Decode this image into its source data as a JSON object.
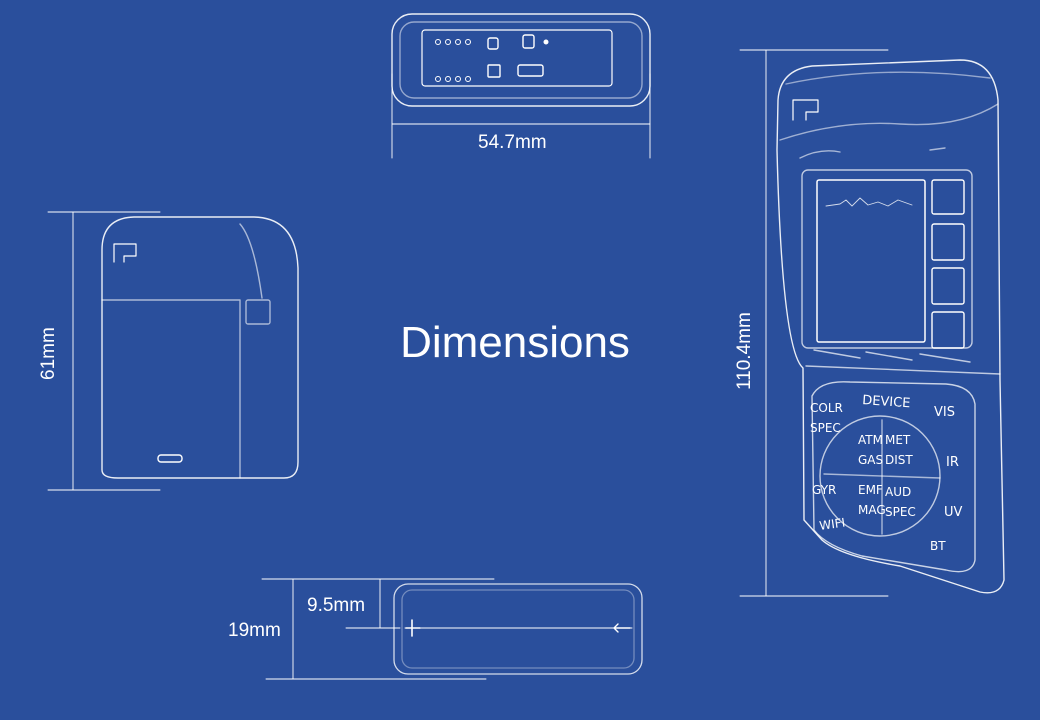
{
  "title": "Dimensions",
  "dimensions": {
    "top_width": "54.7mm",
    "side_height": "61mm",
    "front_height": "110.4mm",
    "bottom_depth": "19mm",
    "bottom_half_depth": "9.5mm"
  },
  "keypad": {
    "device": "DEVICE",
    "colr_spec": "COLR SPEC",
    "vis": "VIS",
    "atm_gas": "ATM GAS",
    "met_dist": "MET DIST",
    "ir": "IR",
    "gyr": "GYR",
    "emf_mag": "EMF MAG",
    "aud_spec": "AUD SPEC",
    "uv": "UV",
    "wifi": "WIFI",
    "bt": "BT"
  },
  "colors": {
    "background": "#2a4f9c",
    "lines": "#ffffff"
  }
}
